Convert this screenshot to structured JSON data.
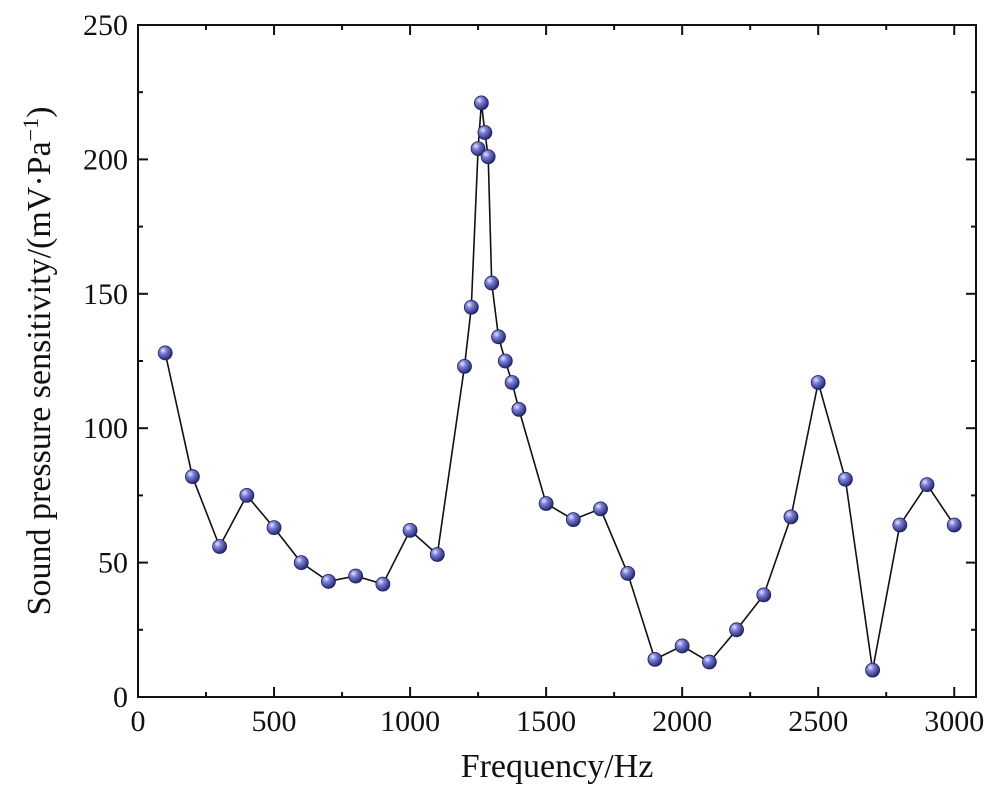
{
  "chart_data": {
    "type": "line",
    "title": "",
    "xlabel": "Frequency/Hz",
    "ylabel_main": "Sound pressure sensitivity/(mV·Pa",
    "ylabel_sup": "−1",
    "ylabel_close": ")",
    "xlim": [
      0,
      3080
    ],
    "ylim": [
      0,
      250
    ],
    "x_major_ticks": [
      0,
      500,
      1000,
      1500,
      2000,
      2500,
      3000
    ],
    "x_tick_labels": [
      "0",
      "500",
      "1000",
      "1500",
      "2000",
      "2500",
      "3000"
    ],
    "x_minor_ticks": [
      250,
      750,
      1250,
      1750,
      2250,
      2750
    ],
    "y_major_ticks": [
      0,
      50,
      100,
      150,
      200,
      250
    ],
    "y_tick_labels": [
      "0",
      "50",
      "100",
      "150",
      "200",
      "250"
    ],
    "y_minor_ticks": [
      25,
      75,
      125,
      175,
      225
    ],
    "grid": false,
    "legend": null,
    "marker_color": "#4a4fb0",
    "line_color": "#111111",
    "series": [
      {
        "name": "Sound pressure sensitivity",
        "x": [
          100,
          200,
          300,
          400,
          500,
          600,
          700,
          800,
          900,
          1000,
          1100,
          1200,
          1225,
          1250,
          1262,
          1275,
          1287,
          1300,
          1325,
          1350,
          1375,
          1400,
          1500,
          1600,
          1700,
          1800,
          1900,
          2000,
          2100,
          2200,
          2300,
          2400,
          2500,
          2600,
          2700,
          2800,
          2900,
          3000
        ],
        "values": [
          128,
          82,
          56,
          75,
          63,
          50,
          43,
          45,
          42,
          62,
          53,
          123,
          145,
          204,
          221,
          210,
          201,
          154,
          134,
          125,
          117,
          107,
          72,
          66,
          70,
          46,
          14,
          19,
          13,
          25,
          38,
          67,
          117,
          81,
          10,
          64,
          79,
          64
        ]
      }
    ]
  }
}
